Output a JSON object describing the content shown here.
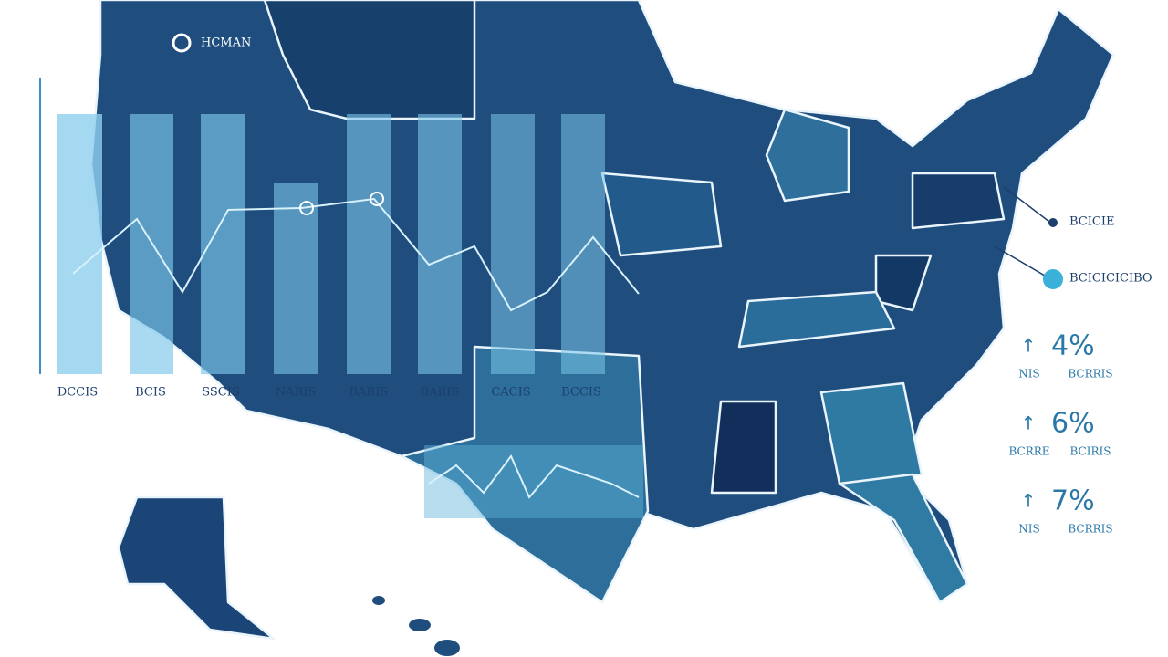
{
  "map": {
    "marker_label": "HCMAN",
    "callouts": [
      "BCICIE",
      "BCICICICIBO"
    ],
    "bar_labels": [
      "DCCIS",
      "BCIS",
      "SSCIS",
      "NARIS",
      "BARIS",
      "BARIS",
      "CACIS",
      "BCCIS"
    ],
    "stats": [
      {
        "value": "4%",
        "left": "NIS",
        "right": "BCRRIS"
      },
      {
        "value": "6%",
        "left": "BCRRE",
        "right": "BCIRIS"
      },
      {
        "value": "7%",
        "left": "NIS",
        "right": "BCRRIS"
      }
    ]
  }
}
